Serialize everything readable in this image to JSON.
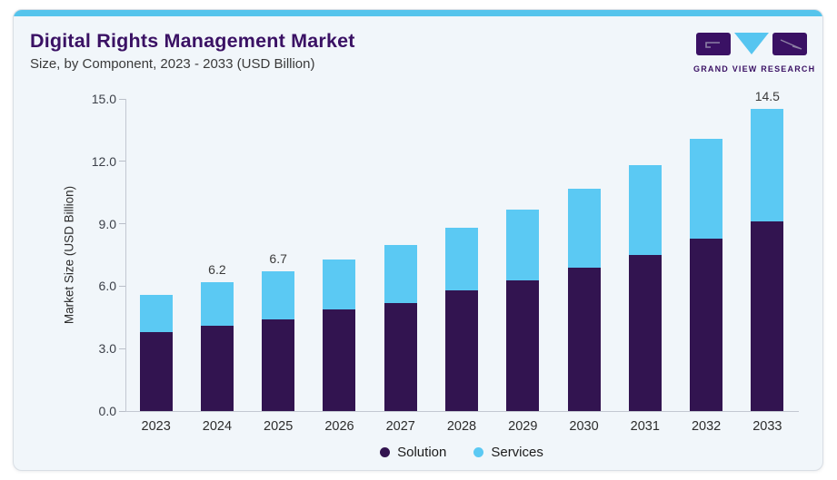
{
  "page": {
    "background": "#ffffff"
  },
  "card": {
    "background": "#f1f6fa",
    "border_color": "#d9dee4",
    "accent_bar_color": "#55c4ec"
  },
  "header": {
    "title": "Digital Rights Management Market",
    "subtitle": "Size, by Component, 2023 - 2033 (USD Billion)",
    "title_color": "#3a1164",
    "subtitle_color": "#3a3a3a"
  },
  "logo": {
    "text": "GRAND VIEW RESEARCH",
    "purple": "#3a1164",
    "blue": "#56c5f0"
  },
  "chart_data": {
    "type": "bar",
    "stacked": true,
    "title": "Digital Rights Management Market Size, by Component, 2023 - 2033 (USD Billion)",
    "categories": [
      "2023",
      "2024",
      "2025",
      "2026",
      "2027",
      "2028",
      "2029",
      "2030",
      "2031",
      "2032",
      "2033"
    ],
    "series": [
      {
        "name": "Solution",
        "color": "#321450",
        "values": [
          3.8,
          4.1,
          4.4,
          4.9,
          5.2,
          5.8,
          6.3,
          6.9,
          7.5,
          8.3,
          9.1
        ]
      },
      {
        "name": "Services",
        "color": "#5bc9f3",
        "values": [
          1.8,
          2.1,
          2.3,
          2.4,
          2.8,
          3.0,
          3.4,
          3.8,
          4.3,
          4.8,
          5.4
        ]
      }
    ],
    "totals": [
      5.6,
      6.2,
      6.7,
      7.3,
      8.0,
      8.8,
      9.7,
      10.7,
      11.8,
      13.1,
      14.5
    ],
    "point_labels": [
      {
        "index": 1,
        "text": "6.2"
      },
      {
        "index": 2,
        "text": "6.7"
      },
      {
        "index": 10,
        "text": "14.5"
      }
    ],
    "xlabel": "",
    "ylabel": "Market Size (USD Billion)",
    "y_ticks": [
      "0.0",
      "3.0",
      "6.0",
      "9.0",
      "12.0",
      "15.0"
    ],
    "ylim": [
      0,
      15
    ],
    "grid": false,
    "legend_position": "bottom",
    "axis_color": "#c3c8d1",
    "tick_label_color": "#3c4049"
  }
}
